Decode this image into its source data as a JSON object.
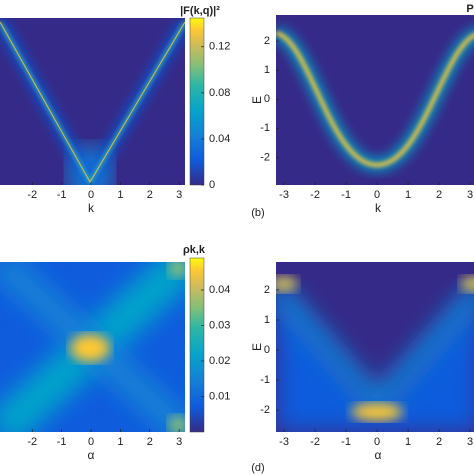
{
  "chart_data": [
    {
      "type": "heatmap",
      "xlabel": "k",
      "xlim": [
        -3.2,
        3.2
      ],
      "xticks": [
        -2,
        -1,
        0,
        1,
        2,
        3
      ],
      "colorbar_label": "|F(k,q)|²",
      "clim": [
        0,
        0.145
      ],
      "cticks": [
        0,
        0.04,
        0.08,
        0.12
      ]
    },
    {
      "type": "heatmap",
      "xlabel": "k",
      "ylabel": "E",
      "panel_label": "(b)",
      "xlim": [
        -3.26,
        3.32
      ],
      "xticks": [
        -3,
        -2,
        -1,
        0,
        1,
        2,
        3
      ],
      "ylim": [
        -2.95,
        2.9
      ],
      "yticks": [
        -2,
        -1,
        0,
        1,
        2
      ],
      "colorbar_label": "P"
    },
    {
      "type": "heatmap",
      "xlabel": "α",
      "xlim": [
        -3.2,
        3.2
      ],
      "xticks": [
        -2,
        -1,
        0,
        1,
        2,
        3
      ],
      "colorbar_label": "ρk,k",
      "clim": [
        0,
        0.049
      ],
      "cticks": [
        0.01,
        0.02,
        0.03,
        0.04
      ]
    },
    {
      "type": "heatmap",
      "xlabel": "α",
      "ylabel": "E",
      "panel_label": "(d)",
      "xlim": [
        -3.26,
        3.32
      ],
      "xticks": [
        -3,
        -2,
        -1,
        0,
        1,
        2,
        3
      ],
      "ylim": [
        -2.73,
        2.93
      ],
      "yticks": [
        -2,
        -1,
        0,
        1,
        2
      ]
    }
  ]
}
